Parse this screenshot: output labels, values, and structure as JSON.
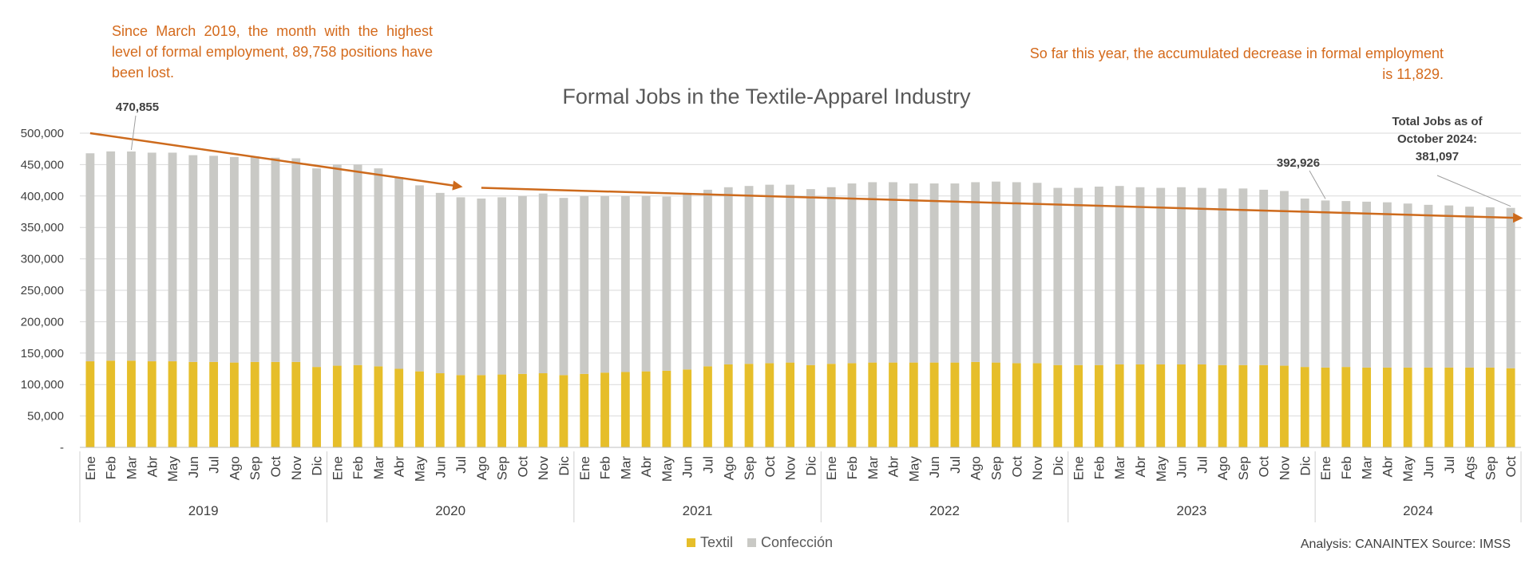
{
  "annotations": {
    "left_text": "Since March 2019, the month with the highest level of formal employment, 89,758 positions have been lost.",
    "right_text": "So far this year, the accumulated decrease in formal employment is 11,829.",
    "label_peak": "470,855",
    "label_2024_start": "392,926",
    "label_total_line1": "Total Jobs as of",
    "label_total_line2": "October 2024:",
    "label_total_line3": "381,097"
  },
  "footer": {
    "source": "Analysis: CANAINTEX  Source: IMSS"
  },
  "colors": {
    "textil": "#e6be2a",
    "confeccion": "#c9c9c5",
    "trend": "#cd6a1c",
    "annotation": "#d46a1c"
  },
  "chart_data": {
    "type": "bar",
    "stacked": true,
    "title": "Formal Jobs in the Textile-Apparel Industry",
    "ylim": [
      0,
      500000
    ],
    "yticks": [
      "-",
      "50,000",
      "100,000",
      "150,000",
      "200,000",
      "250,000",
      "300,000",
      "350,000",
      "400,000",
      "450,000",
      "500,000"
    ],
    "grid": true,
    "legend_position": "bottom",
    "years": [
      {
        "label": "2019",
        "months": [
          "Ene",
          "Feb",
          "Mar",
          "Abr",
          "May",
          "Jun",
          "Jul",
          "Ago",
          "Sep",
          "Oct",
          "Nov",
          "Dic"
        ]
      },
      {
        "label": "2020",
        "months": [
          "Ene",
          "Feb",
          "Mar",
          "Abr",
          "May",
          "Jun",
          "Jul",
          "Ago",
          "Sep",
          "Oct",
          "Nov",
          "Dic"
        ]
      },
      {
        "label": "2021",
        "months": [
          "Ene",
          "Feb",
          "Mar",
          "Abr",
          "May",
          "Jun",
          "Jul",
          "Ago",
          "Sep",
          "Oct",
          "Nov",
          "Dic"
        ]
      },
      {
        "label": "2022",
        "months": [
          "Ene",
          "Feb",
          "Mar",
          "Abr",
          "May",
          "Jun",
          "Jul",
          "Ago",
          "Sep",
          "Oct",
          "Nov",
          "Dic"
        ]
      },
      {
        "label": "2023",
        "months": [
          "Ene",
          "Feb",
          "Mar",
          "Abr",
          "May",
          "Jun",
          "Jul",
          "Ago",
          "Sep",
          "Oct",
          "Nov",
          "Dic"
        ]
      },
      {
        "label": "2024",
        "months": [
          "Ene",
          "Feb",
          "Mar",
          "Abr",
          "May",
          "Jun",
          "Jul",
          "Ags",
          "Sep",
          "Oct"
        ]
      }
    ],
    "series": [
      {
        "name": "Textil",
        "values": [
          137000,
          138000,
          138000,
          137000,
          137000,
          136000,
          136000,
          135000,
          136000,
          136000,
          136000,
          128000,
          130000,
          131000,
          129000,
          125000,
          121000,
          118000,
          115000,
          115000,
          116000,
          117000,
          118000,
          115000,
          117000,
          119000,
          120000,
          121000,
          122000,
          124000,
          129000,
          132000,
          133000,
          134000,
          135000,
          131000,
          133000,
          134000,
          135000,
          135000,
          135000,
          135000,
          135000,
          136000,
          135000,
          134000,
          134000,
          131000,
          131000,
          131000,
          132000,
          132000,
          132000,
          132000,
          132000,
          131000,
          131000,
          131000,
          130000,
          128000,
          127000,
          128000,
          127000,
          127000,
          127000,
          127000,
          127000,
          127000,
          127000,
          126000
        ]
      },
      {
        "name": "Confección",
        "values": [
          331000,
          333000,
          332855,
          332000,
          332000,
          329000,
          328000,
          327000,
          327000,
          325000,
          324000,
          316000,
          320000,
          319000,
          315000,
          305000,
          296000,
          287000,
          283000,
          281000,
          282000,
          283000,
          286000,
          282000,
          283000,
          281000,
          280000,
          279000,
          277000,
          279000,
          281000,
          282000,
          283000,
          284000,
          283000,
          280000,
          281000,
          286000,
          287000,
          287000,
          285000,
          285000,
          285000,
          286000,
          288000,
          288000,
          287000,
          282000,
          282000,
          284000,
          284000,
          282000,
          281000,
          282000,
          281000,
          281000,
          281000,
          279000,
          278000,
          268000,
          265926,
          264000,
          264000,
          263000,
          261000,
          259000,
          258000,
          256000,
          255000,
          255097
        ]
      }
    ],
    "trend_lines": [
      {
        "from": {
          "index": 0,
          "value": 500000
        },
        "to": {
          "index": 18,
          "value": 415000
        }
      },
      {
        "from": {
          "index": 19,
          "value": 413000
        },
        "to": {
          "index": 69.5,
          "value": 365000
        }
      }
    ]
  }
}
